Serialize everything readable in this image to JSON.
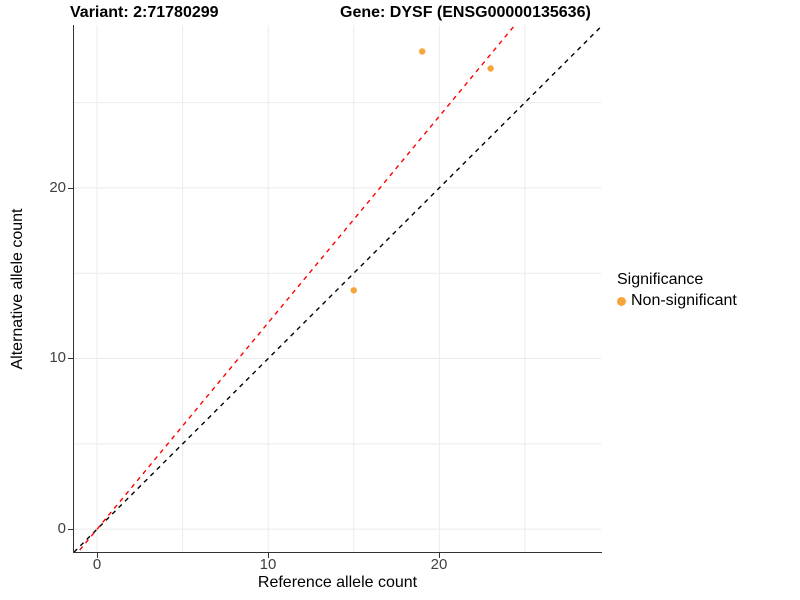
{
  "titles": {
    "left": "Variant: 2:71780299",
    "right": "Gene: DYSF (ENSG00000135636)"
  },
  "axes": {
    "x": {
      "label": "Reference allele count",
      "ticks": [
        "0",
        "10",
        "20"
      ]
    },
    "y": {
      "label": "Alternative allele count",
      "ticks": [
        "0",
        "10",
        "20"
      ]
    }
  },
  "legend": {
    "title": "Significance",
    "items": [
      {
        "label": "Non-significant",
        "color": "#F9A43B",
        "marker": "circle"
      }
    ]
  },
  "colors": {
    "point": "#F9A43B",
    "identity_line": "#000000",
    "fit_line": "#FF0000",
    "gridline": "#EBEBEB",
    "axis": "#333333",
    "tick_text": "#404040"
  },
  "chart_data": {
    "type": "scatter",
    "title": "Variant: 2:71780299 — Gene: DYSF (ENSG00000135636)",
    "xlabel": "Reference allele count",
    "ylabel": "Alternative allele count",
    "xlim": [
      -1.35,
      29.45
    ],
    "ylim": [
      -1.4,
      29.55
    ],
    "x_major_ticks": [
      0,
      10,
      20
    ],
    "y_major_ticks": [
      0,
      10,
      20
    ],
    "x_minor_gridlines": [
      5,
      15,
      25
    ],
    "y_minor_gridlines": [
      5,
      15,
      25
    ],
    "grid": true,
    "legend_position": "right",
    "series": [
      {
        "name": "Non-significant",
        "color": "#F9A43B",
        "marker": "circle",
        "points": [
          [
            15,
            14
          ],
          [
            19,
            28
          ],
          [
            23,
            27
          ]
        ]
      }
    ],
    "lines": [
      {
        "name": "identity-line",
        "slope": 1.0,
        "intercept": 0,
        "color": "#000000",
        "style": "dashed"
      },
      {
        "name": "fit-line",
        "slope": 1.21,
        "intercept": 0,
        "color": "#FF0000",
        "style": "dashed"
      }
    ]
  }
}
